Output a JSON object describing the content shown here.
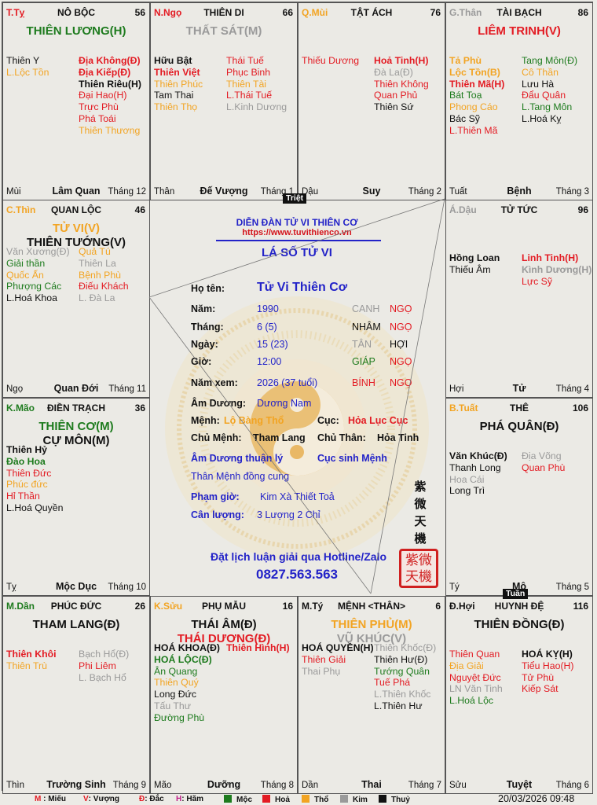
{
  "colors": {
    "hoa": "#e31b23",
    "moc": "#1e7b1e",
    "tho": "#f2a423",
    "kim": "#9a9a9a",
    "thuy": "#111111",
    "blue": "#2323c8"
  },
  "palaces": [
    {
      "can": "T.Tỵ",
      "can_c": "hoa",
      "name": "NÔ BỘC",
      "num": "56",
      "main": [
        [
          "THIÊN LƯƠNG(H)",
          "moc"
        ]
      ],
      "left": [
        [
          "Thiên Y",
          "thuy",
          0
        ],
        [
          "L.Lộc Tồn",
          "tho",
          0
        ]
      ],
      "right": [
        [
          "Địa Không(Đ)",
          "hoa",
          1
        ],
        [
          "Địa Kiếp(Đ)",
          "hoa",
          1
        ],
        [
          "Thiên Riêu(H)",
          "thuy",
          1
        ],
        [
          "Đại Hao(H)",
          "hoa",
          0
        ],
        [
          "Trực Phù",
          "hoa",
          0
        ],
        [
          "Phá Toái",
          "hoa",
          0
        ],
        [
          "Thiên Thương",
          "tho",
          0
        ]
      ],
      "branch": "Mùi",
      "stage": "Lâm Quan",
      "month": "Tháng 12"
    },
    {
      "can": "N.Ngọ",
      "can_c": "hoa",
      "name": "THIÊN DI",
      "num": "66",
      "main": [
        [
          "THẤT SÁT(M)",
          "kim"
        ]
      ],
      "left": [
        [
          "Hữu Bật",
          "thuy",
          1
        ],
        [
          "Thiên Việt",
          "hoa",
          1
        ],
        [
          "Thiên Phúc",
          "tho",
          0
        ],
        [
          "Tam Thai",
          "thuy",
          0
        ],
        [
          "Thiên Thọ",
          "tho",
          0
        ]
      ],
      "right": [
        [
          "Thái Tuế",
          "hoa",
          0
        ],
        [
          "Phục Binh",
          "hoa",
          0
        ],
        [
          "Thiên Tài",
          "tho",
          0
        ],
        [
          "L.Thái Tuế",
          "hoa",
          0
        ],
        [
          "L.Kinh Dương",
          "kim",
          0
        ]
      ],
      "branch": "Thân",
      "stage": "Đế Vượng",
      "month": "Tháng 1"
    },
    {
      "can": "Q.Mùi",
      "can_c": "tho",
      "name": "TẬT ÁCH",
      "num": "76",
      "main": [],
      "left": [
        [
          "Thiếu Dương",
          "hoa",
          0
        ]
      ],
      "right": [
        [
          "Hoả Tinh(H)",
          "hoa",
          1
        ],
        [
          "Đà La(Đ)",
          "kim",
          0
        ],
        [
          "Thiên Không",
          "hoa",
          0
        ],
        [
          "Quan Phủ",
          "hoa",
          0
        ],
        [
          "Thiên Sứ",
          "thuy",
          0
        ]
      ],
      "branch": "Dậu",
      "stage": "Suy",
      "month": "Tháng 2"
    },
    {
      "can": "G.Thân",
      "can_c": "kim",
      "name": "TÀI BẠCH",
      "num": "86",
      "main": [
        [
          "LIÊM TRINH(V)",
          "hoa"
        ]
      ],
      "left": [
        [
          "Tả Phù",
          "tho",
          1
        ],
        [
          "Lộc Tồn(B)",
          "tho",
          1
        ],
        [
          "Thiên Mã(H)",
          "hoa",
          1
        ],
        [
          "Bát Toạ",
          "moc",
          0
        ],
        [
          "Phong Cáo",
          "tho",
          0
        ],
        [
          "Bác Sỹ",
          "thuy",
          0
        ],
        [
          "L.Thiên Mã",
          "hoa",
          0
        ]
      ],
      "right": [
        [
          "Tang Môn(Đ)",
          "moc",
          0
        ],
        [
          "Cô Thần",
          "tho",
          0
        ],
        [
          "Lưu Hà",
          "thuy",
          0
        ],
        [
          "Đẩu Quân",
          "hoa",
          0
        ],
        [
          "L.Tang Môn",
          "moc",
          0
        ],
        [
          "L.Hoá Kỵ",
          "thuy",
          0
        ]
      ],
      "branch": "Tuất",
      "stage": "Bệnh",
      "month": "Tháng 3"
    },
    {
      "can": "C.Thìn",
      "can_c": "tho",
      "name": "QUAN LỘC",
      "num": "46",
      "main": [
        [
          "TỬ VI(V)",
          "tho"
        ],
        [
          "THIÊN TƯỚNG(V)",
          "thuy"
        ]
      ],
      "left": [
        [
          "Văn Xương(Đ)",
          "kim",
          0
        ],
        [
          "Giải thần",
          "moc",
          0
        ],
        [
          "Quốc Ấn",
          "tho",
          0
        ],
        [
          "Phượng Các",
          "moc",
          0
        ],
        [
          "L.Hoá Khoa",
          "thuy",
          0
        ]
      ],
      "right": [
        [
          "Quả Tú",
          "tho",
          0
        ],
        [
          "Thiên La",
          "kim",
          0
        ],
        [
          "Bệnh Phù",
          "tho",
          0
        ],
        [
          "Điếu Khách",
          "hoa",
          0
        ],
        [
          "L. Đà La",
          "kim",
          0
        ]
      ],
      "branch": "Ngọ",
      "stage": "Quan Đới",
      "month": "Tháng 11"
    },
    {
      "can": "Á.Dậu",
      "can_c": "kim",
      "name": "TỬ TỨC",
      "num": "96",
      "main": [],
      "left": [
        [
          "Hồng Loan",
          "thuy",
          1
        ],
        [
          "Thiếu Âm",
          "thuy",
          0
        ]
      ],
      "right": [
        [
          "Linh Tinh(H)",
          "hoa",
          1
        ],
        [
          "Kình Dương(H)",
          "kim",
          1
        ],
        [
          "Lực Sỹ",
          "hoa",
          0
        ]
      ],
      "branch": "Hợi",
      "stage": "Tử",
      "month": "Tháng 4"
    },
    {
      "can": "K.Mão",
      "can_c": "moc",
      "name": "ĐIỀN TRẠCH",
      "num": "36",
      "main": [
        [
          "THIÊN CƠ(M)",
          "moc"
        ],
        [
          "CỰ MÔN(M)",
          "thuy"
        ]
      ],
      "left": [
        [
          "Thiên Hỷ",
          "thuy",
          1
        ],
        [
          "Đào Hoa",
          "moc",
          1
        ],
        [
          "Thiên Đức",
          "hoa",
          0
        ],
        [
          "Phúc đức",
          "tho",
          0
        ],
        [
          "Hỉ Thần",
          "hoa",
          0
        ],
        [
          "L.Hoá Quyền",
          "thuy",
          0
        ]
      ],
      "right": [],
      "branch": "Tỵ",
      "stage": "Mộc Dục",
      "month": "Tháng 10"
    },
    {
      "can": "B.Tuất",
      "can_c": "tho",
      "name": "THÊ",
      "num": "106",
      "main": [
        [
          "PHÁ QUÂN(Đ)",
          "thuy"
        ]
      ],
      "left": [
        [
          "Văn Khúc(Đ)",
          "thuy",
          1
        ],
        [
          "Thanh Long",
          "thuy",
          0
        ],
        [
          "Hoa Cái",
          "kim",
          0
        ],
        [
          "Long Trì",
          "thuy",
          0
        ]
      ],
      "right": [
        [
          "Địa Võng",
          "kim",
          0
        ],
        [
          "Quan Phù",
          "hoa",
          0
        ]
      ],
      "branch": "Tý",
      "stage": "Mộ",
      "month": "Tháng 5"
    },
    {
      "can": "M.Dần",
      "can_c": "moc",
      "name": "PHÚC ĐỨC",
      "num": "26",
      "main": [
        [
          "THAM LANG(Đ)",
          "thuy"
        ]
      ],
      "left": [
        [
          "Thiên Khôi",
          "hoa",
          1
        ],
        [
          "Thiên Trù",
          "tho",
          0
        ]
      ],
      "right": [
        [
          "Bạch Hổ(Đ)",
          "kim",
          0
        ],
        [
          "Phi Liêm",
          "hoa",
          0
        ],
        [
          "L. Bạch Hổ",
          "kim",
          0
        ]
      ],
      "branch": "Thìn",
      "stage": "Trường Sinh",
      "month": "Tháng 9"
    },
    {
      "can": "K.Sửu",
      "can_c": "tho",
      "name": "PHỤ MẪU",
      "num": "16",
      "main": [
        [
          "THÁI ÂM(Đ)",
          "thuy"
        ],
        [
          "THÁI DƯƠNG(Đ)",
          "hoa"
        ]
      ],
      "left": [
        [
          "HOÁ KHOA(Đ)",
          "thuy",
          1
        ],
        [
          "HOÁ LỘC(Đ)",
          "moc",
          1
        ],
        [
          "Ân Quang",
          "moc",
          0
        ],
        [
          "Thiên Quý",
          "tho",
          0
        ],
        [
          "Long Đức",
          "thuy",
          0
        ],
        [
          "Tấu Thư",
          "kim",
          0
        ],
        [
          "Đường Phù",
          "moc",
          0
        ]
      ],
      "right": [
        [
          "Thiên Hình(H)",
          "hoa",
          1
        ]
      ],
      "branch": "Mão",
      "stage": "Dưỡng",
      "month": "Tháng 8"
    },
    {
      "can": "M.Tý",
      "can_c": "thuy",
      "name": "MỆNH <THÂN>",
      "num": "6",
      "main": [
        [
          "THIÊN PHỦ(M)",
          "tho"
        ],
        [
          "VŨ KHÚC(V)",
          "kim"
        ]
      ],
      "left": [
        [
          "HOÁ QUYỀN(H)",
          "thuy",
          1
        ],
        [
          "Thiên Giải",
          "hoa",
          0
        ],
        [
          "Thai Phụ",
          "kim",
          0
        ]
      ],
      "right": [
        [
          "Thiên Khốc(Đ)",
          "kim",
          0
        ],
        [
          "Thiên Hư(Đ)",
          "thuy",
          0
        ],
        [
          "Tướng Quân",
          "moc",
          0
        ],
        [
          "Tuế Phá",
          "hoa",
          0
        ],
        [
          "L.Thiên Khốc",
          "kim",
          0
        ],
        [
          "L.Thiên Hư",
          "thuy",
          0
        ]
      ],
      "branch": "Dần",
      "stage": "Thai",
      "month": "Tháng 7"
    },
    {
      "can": "Đ.Hợi",
      "can_c": "thuy",
      "name": "HUYNH ĐỆ",
      "num": "116",
      "main": [
        [
          "THIÊN ĐỒNG(Đ)",
          "thuy"
        ]
      ],
      "left": [
        [
          "Thiên Quan",
          "hoa",
          0
        ],
        [
          "Địa Giải",
          "tho",
          0
        ],
        [
          "Nguyệt Đức",
          "hoa",
          0
        ],
        [
          "LN Văn Tinh",
          "kim",
          0
        ],
        [
          "L.Hoá Lộc",
          "moc",
          0
        ]
      ],
      "right": [
        [
          "HOÁ KỴ(H)",
          "thuy",
          1
        ],
        [
          "Tiểu Hao(H)",
          "hoa",
          0
        ],
        [
          "Tử Phù",
          "hoa",
          0
        ],
        [
          "Kiếp Sát",
          "hoa",
          0
        ]
      ],
      "branch": "Sửu",
      "stage": "Tuyệt",
      "month": "Tháng 6"
    }
  ],
  "markers": {
    "triet": "Triệt",
    "tuan": "Tuần"
  },
  "center": {
    "forum": "DIỄN ĐÀN TỬ VI THIÊN CƠ",
    "url": "https://www.tuvithienco.vn",
    "title": "LÁ SỐ TỬ VI",
    "name_label": "Họ tên:",
    "name": "Tử Vi Thiên Cơ",
    "rows": [
      {
        "label": "Năm:",
        "value": "1990",
        "can": "CANH",
        "can_c": "kim",
        "chi": "NGỌ",
        "chi_c": "hoa"
      },
      {
        "label": "Tháng:",
        "value": "6 (5)",
        "can": "NHÂM",
        "can_c": "thuy",
        "chi": "NGỌ",
        "chi_c": "hoa"
      },
      {
        "label": "Ngày:",
        "value": "15 (23)",
        "can": "TÂN",
        "can_c": "kim",
        "chi": "HỢI",
        "chi_c": "thuy"
      },
      {
        "label": "Giờ:",
        "value": "12:00",
        "can": "GIÁP",
        "can_c": "moc",
        "chi": "NGỌ",
        "chi_c": "hoa"
      },
      {
        "label": "Năm xem:",
        "value": "2026 (37 tuổi)",
        "can": "BÍNH",
        "can_c": "hoa",
        "chi": "NGỌ",
        "chi_c": "hoa"
      }
    ],
    "am_duong_label": "Âm Dương:",
    "am_duong": "Dương Nam",
    "menh_label": "Mệnh:",
    "menh": "Lộ Bàng Thổ",
    "cuc_label": "Cục:",
    "cuc": "Hỏa Lục Cục",
    "chu_menh_label": "Chủ Mệnh:",
    "chu_menh": "Tham Lang",
    "chu_than_label": "Chủ Thân:",
    "chu_than": "Hỏa Tinh",
    "note1": "Âm Dương thuận lý",
    "note2": "Cục sinh Mệnh",
    "note3": "Thân Mệnh đồng cung",
    "pham_gio_label": "Phạm giờ:",
    "pham_gio": "Kim Xà Thiết Toả",
    "can_luong_label": "Cân lượng:",
    "can_luong": "3 Lượng 2 Chỉ",
    "hotline": "Đặt lịch luận giải qua Hotline/Zalo",
    "phone": "0827.563.563",
    "chinese": [
      "紫",
      "微",
      "天",
      "機"
    ],
    "seal": "紫微天機"
  },
  "legend": {
    "items": [
      {
        "k": "M",
        "t": " : Miếu"
      },
      {
        "k": "V",
        "t": ": Vượng"
      },
      {
        "k": "Đ",
        "t": ": Đắc"
      },
      {
        "k": "H",
        "t": ": Hãm"
      }
    ],
    "elements": [
      {
        "t": "Mộc",
        "c": "moc"
      },
      {
        "t": "Hoả",
        "c": "hoa"
      },
      {
        "t": "Thổ",
        "c": "tho"
      },
      {
        "t": "Kim",
        "c": "kim"
      },
      {
        "t": "Thuỷ",
        "c": "thuy"
      }
    ],
    "timestamp": "20/03/2026 09:48"
  }
}
